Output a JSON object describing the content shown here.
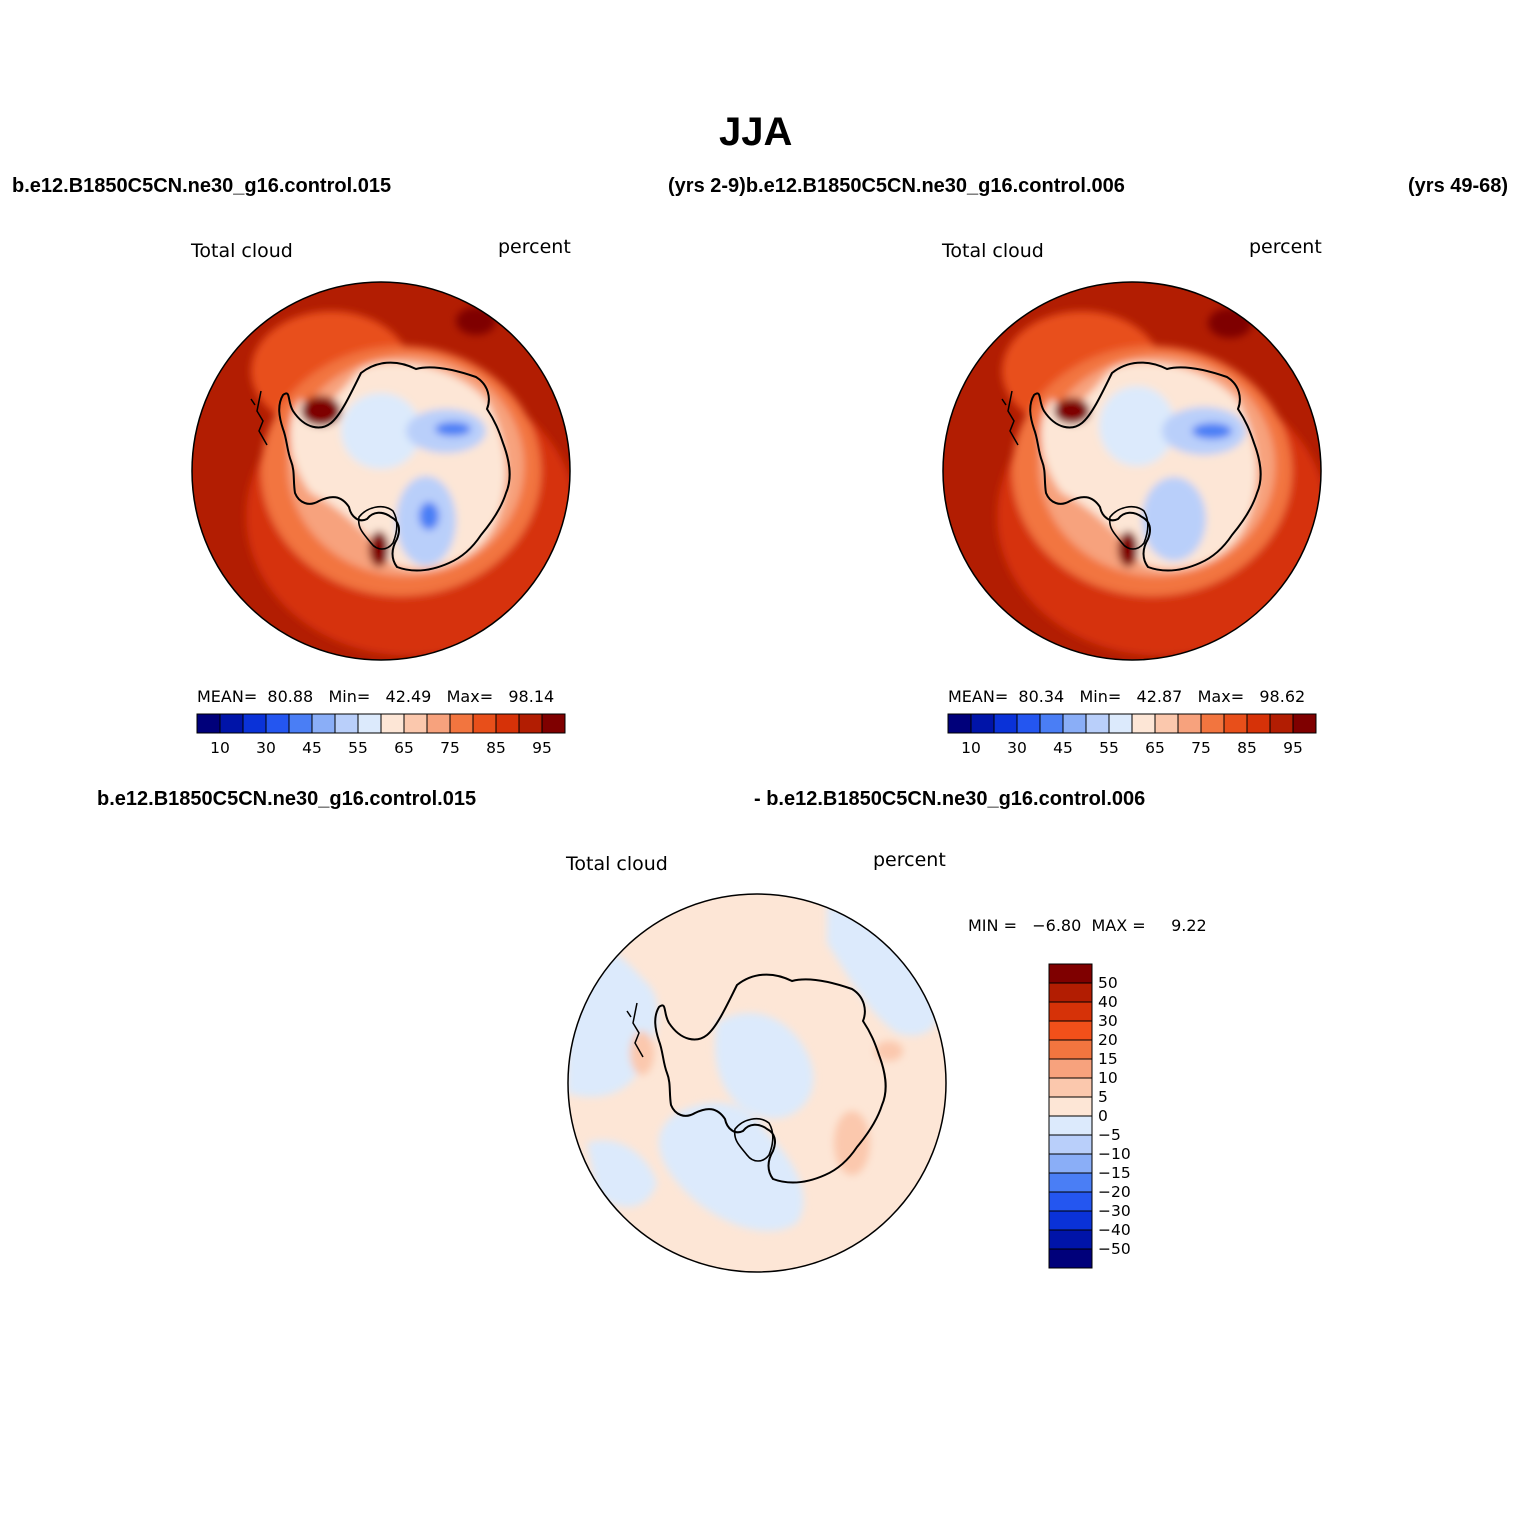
{
  "figure_title": "JJA",
  "header": {
    "left_case": "b.e12.B1850C5CN.ne30_g16.control.015",
    "mid": "(yrs 2-9)b.e12.B1850C5CN.ne30_g16.control.006",
    "right": "(yrs 49-68)"
  },
  "panels": [
    {
      "variable": "Total cloud",
      "units": "percent",
      "stats": {
        "mean_label": "MEAN=",
        "mean": "80.88",
        "min_label": "Min=",
        "min": "42.49",
        "max_label": "Max=",
        "max": "98.14"
      }
    },
    {
      "variable": "Total cloud",
      "units": "percent",
      "stats": {
        "mean_label": "MEAN=",
        "mean": "80.34",
        "min_label": "Min=",
        "min": "42.87",
        "max_label": "Max=",
        "max": "98.62"
      }
    }
  ],
  "diff_header": {
    "left": "b.e12.B1850C5CN.ne30_g16.control.015",
    "right": "- b.e12.B1850C5CN.ne30_g16.control.006"
  },
  "diff_panel": {
    "variable": "Total cloud",
    "units": "percent",
    "minmax": "MIN =   −6.80  MAX =     9.22"
  },
  "colorbar_main": {
    "colors": [
      "#00007a",
      "#0014a8",
      "#0a32d8",
      "#2456f0",
      "#4a7ef5",
      "#8aaef7",
      "#b9cffa",
      "#dceafc",
      "#fde6d6",
      "#fbc8ad",
      "#f7a27d",
      "#f2753f",
      "#e84f1a",
      "#d63208",
      "#b21d02",
      "#7f0000"
    ],
    "tick_labels": [
      "10",
      "30",
      "45",
      "55",
      "65",
      "75",
      "85",
      "95"
    ]
  },
  "colorbar_diff": {
    "colors": [
      "#7f0000",
      "#b21d02",
      "#d63208",
      "#f2501a",
      "#f2753f",
      "#f7a27d",
      "#fbc8ad",
      "#fde6d6",
      "#dceafc",
      "#b9cffa",
      "#8aaef7",
      "#4a7ef5",
      "#2456f0",
      "#0a32d8",
      "#0014a8",
      "#00007a"
    ],
    "tick_labels": [
      "50",
      "40",
      "30",
      "20",
      "15",
      "10",
      "5",
      "0",
      "−5",
      "−10",
      "−15",
      "−20",
      "−30",
      "−40",
      "−50"
    ]
  },
  "map_colors": {
    "ocean_dark": "#b21d02",
    "ocean_mid": "#d63208",
    "ocean_light": "#e84f1a",
    "coast_high": "#f2753f",
    "coast_mid": "#f7a27d",
    "ice_edge": "#fde6d6",
    "interior_low": "#dceafc",
    "interior_lower": "#b9cffa",
    "interior_min": "#4a7ef5",
    "peak": "#7f0000",
    "diff_pos": "#fde6d6",
    "diff_neg": "#dceafc",
    "diff_pos2": "#fbc8ad"
  }
}
